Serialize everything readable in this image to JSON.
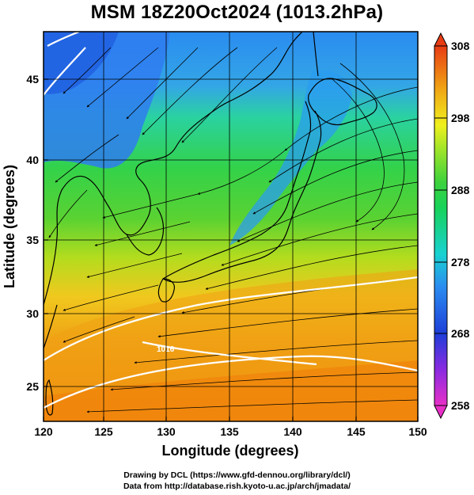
{
  "title": "MSM 18Z20Oct2024 (1013.2hPa)",
  "xlabel": "Longitude (degrees)",
  "ylabel": "Latitude  (degrees)",
  "x_ticks": [
    "120",
    "125",
    "130",
    "135",
    "140",
    "145",
    "150"
  ],
  "y_ticks": [
    "25",
    "30",
    "35",
    "40",
    "45"
  ],
  "colorbar_ticks": [
    "258",
    "268",
    "278",
    "288",
    "298",
    "308"
  ],
  "contour_label": "1016",
  "credit_line1": "Drawing by DCL (https://www.gfd-dennou.org/library/dcl/)",
  "credit_line2": "Data from http://database.rish.kyoto-u.ac.jp/arch/jmadata/",
  "chart_data": {
    "type": "heatmap",
    "x": {
      "label": "Longitude (degrees)",
      "range": [
        120,
        150
      ],
      "ticks": [
        120,
        125,
        130,
        135,
        140,
        145,
        150
      ]
    },
    "y": {
      "label": "Latitude  (degrees)",
      "range": [
        22.5,
        47.5
      ],
      "ticks": [
        25,
        30,
        35,
        40,
        45
      ]
    },
    "colorbar": {
      "range": [
        258,
        308
      ],
      "ticks": [
        258,
        268,
        278,
        288,
        298,
        308
      ]
    },
    "grid": true,
    "colors": {
      "cold": "#2f6cf0",
      "cool": "#18d2c8",
      "mid": "#2ad24a",
      "warm": "#f0d21e",
      "hot": "#f07f0a",
      "contour": "#ffffff"
    }
  }
}
